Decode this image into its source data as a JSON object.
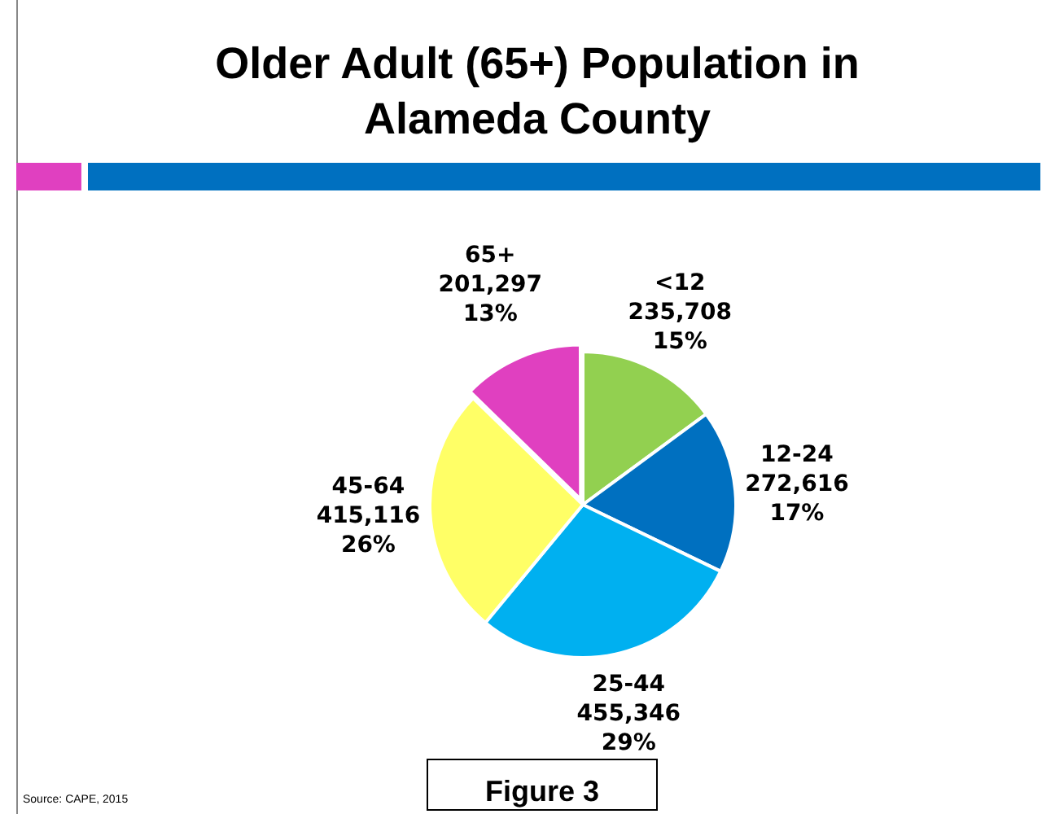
{
  "chart_data": {
    "type": "pie",
    "title": "Older Adult (65+) Population in Alameda County",
    "categories": [
      "<12",
      "12-24",
      "25-44",
      "45-64",
      "65+"
    ],
    "values": [
      235708,
      272616,
      455346,
      415116,
      201297
    ],
    "value_labels": [
      "235,708\n15%",
      "272,616\n17%",
      "455,346\n29%",
      "415,116\n26%",
      "201,297\n13%"
    ],
    "colors": [
      "#92d050",
      "#0070c0",
      "#00b0f0",
      "#ffff66",
      "#e040c0"
    ],
    "legend": false,
    "annotations": [
      "Source: CAPE, 2015",
      "Figure 3"
    ]
  }
}
